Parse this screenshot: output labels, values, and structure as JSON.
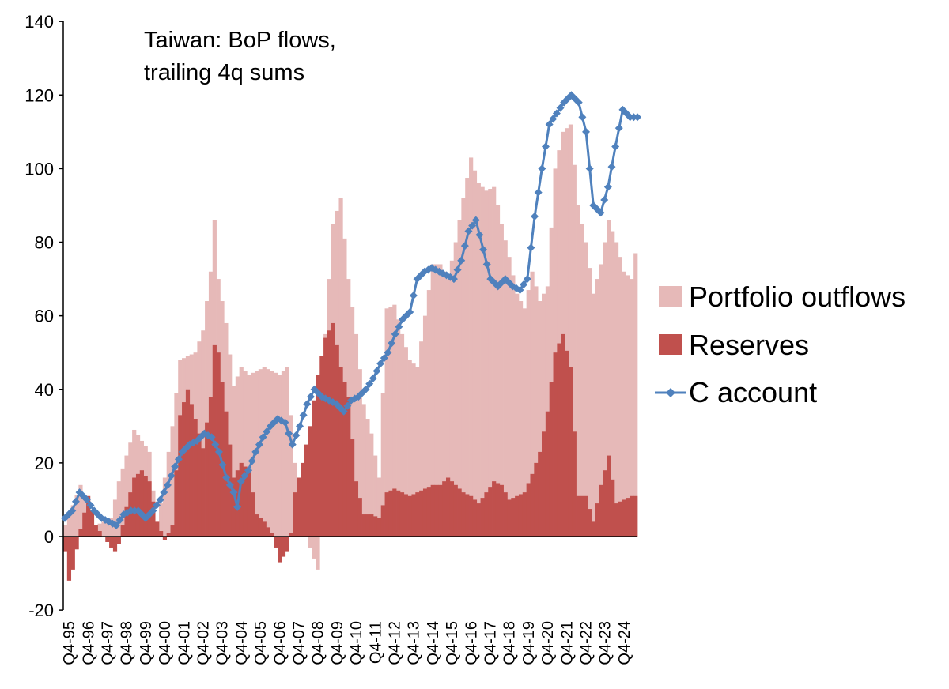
{
  "chart_data": {
    "type": "bar",
    "title": "Taiwan: BoP flows,",
    "subtitle": "trailing 4q sums",
    "xlabel": "",
    "ylabel": "",
    "ylim": [
      -20,
      140
    ],
    "yticks": [
      -20,
      0,
      20,
      40,
      60,
      80,
      100,
      120,
      140
    ],
    "grid": false,
    "legend_position": "right",
    "colors": {
      "portfolio": "#e6b9b8",
      "reserves": "#c0504d",
      "current_account": "#4f81bd",
      "axis": "#000000"
    },
    "x_labels": [
      "Q4-95",
      "Q4-96",
      "Q4-97",
      "Q4-98",
      "Q4-99",
      "Q4-00",
      "Q4-01",
      "Q4-02",
      "Q4-03",
      "Q4-04",
      "Q4-05",
      "Q4-06",
      "Q4-07",
      "Q4-08",
      "Q4-09",
      "Q4-10",
      "Q4-11",
      "Q4-12",
      "Q4-13",
      "Q4-14",
      "Q4-15",
      "Q4-16",
      "Q4-17",
      "Q4-18",
      "Q4-19",
      "Q4-20",
      "Q4-21",
      "Q4-22",
      "Q4-23",
      "Q4-24"
    ],
    "series": [
      {
        "name": "Portfolio outflows",
        "kind": "bar",
        "anchors": [
          [
            0,
            3
          ],
          [
            4,
            14
          ],
          [
            8,
            3
          ],
          [
            12,
            5
          ],
          [
            14,
            15
          ],
          [
            16,
            22
          ],
          [
            18,
            29
          ],
          [
            22,
            23
          ],
          [
            24,
            2
          ],
          [
            28,
            30
          ],
          [
            30,
            48
          ],
          [
            34,
            50
          ],
          [
            36,
            56
          ],
          [
            38,
            72
          ],
          [
            39,
            86
          ],
          [
            40,
            70
          ],
          [
            42,
            58
          ],
          [
            44,
            41
          ],
          [
            46,
            46
          ],
          [
            48,
            44
          ],
          [
            52,
            46
          ],
          [
            56,
            44
          ],
          [
            58,
            46
          ],
          [
            60,
            20
          ],
          [
            61,
            10
          ],
          [
            62,
            8
          ],
          [
            64,
            -3
          ],
          [
            66,
            -9
          ],
          [
            68,
            55
          ],
          [
            70,
            85
          ],
          [
            72,
            92
          ],
          [
            74,
            70
          ],
          [
            76,
            55
          ],
          [
            78,
            36
          ],
          [
            80,
            28
          ],
          [
            82,
            16
          ],
          [
            84,
            62
          ],
          [
            86,
            63
          ],
          [
            88,
            55
          ],
          [
            90,
            48
          ],
          [
            92,
            46
          ],
          [
            94,
            60
          ],
          [
            96,
            74
          ],
          [
            98,
            74
          ],
          [
            100,
            70
          ],
          [
            102,
            80
          ],
          [
            104,
            92
          ],
          [
            106,
            103
          ],
          [
            108,
            96
          ],
          [
            110,
            94
          ],
          [
            112,
            95
          ],
          [
            114,
            85
          ],
          [
            116,
            76
          ],
          [
            118,
            66
          ],
          [
            120,
            62
          ],
          [
            122,
            72
          ],
          [
            124,
            64
          ],
          [
            126,
            68
          ],
          [
            128,
            100
          ],
          [
            130,
            110
          ],
          [
            132,
            112
          ],
          [
            134,
            90
          ],
          [
            136,
            80
          ],
          [
            138,
            66
          ],
          [
            140,
            74
          ],
          [
            142,
            86
          ],
          [
            144,
            80
          ],
          [
            146,
            72
          ],
          [
            148,
            70
          ],
          [
            149,
            77
          ]
        ]
      },
      {
        "name": "Reserves",
        "kind": "bar",
        "anchors": [
          [
            0,
            -4
          ],
          [
            1,
            -12
          ],
          [
            2,
            -9
          ],
          [
            4,
            2
          ],
          [
            6,
            11
          ],
          [
            8,
            3
          ],
          [
            10,
            0
          ],
          [
            12,
            -3
          ],
          [
            13,
            -4
          ],
          [
            14,
            -2
          ],
          [
            16,
            8
          ],
          [
            18,
            16
          ],
          [
            20,
            18
          ],
          [
            22,
            15
          ],
          [
            24,
            4
          ],
          [
            26,
            -1
          ],
          [
            28,
            3
          ],
          [
            30,
            33
          ],
          [
            32,
            40
          ],
          [
            34,
            32
          ],
          [
            36,
            24
          ],
          [
            38,
            38
          ],
          [
            39,
            52
          ],
          [
            40,
            50
          ],
          [
            42,
            34
          ],
          [
            44,
            16
          ],
          [
            46,
            20
          ],
          [
            48,
            18
          ],
          [
            50,
            6
          ],
          [
            52,
            4
          ],
          [
            54,
            1
          ],
          [
            56,
            -7
          ],
          [
            58,
            -4
          ],
          [
            59,
            1
          ],
          [
            60,
            12
          ],
          [
            62,
            20
          ],
          [
            64,
            30
          ],
          [
            66,
            44
          ],
          [
            68,
            54
          ],
          [
            70,
            58
          ],
          [
            72,
            46
          ],
          [
            74,
            38
          ],
          [
            76,
            15
          ],
          [
            78,
            6
          ],
          [
            80,
            6
          ],
          [
            82,
            5
          ],
          [
            84,
            12
          ],
          [
            86,
            13
          ],
          [
            88,
            12
          ],
          [
            90,
            11
          ],
          [
            92,
            12
          ],
          [
            94,
            13
          ],
          [
            96,
            14
          ],
          [
            98,
            14
          ],
          [
            100,
            16
          ],
          [
            102,
            14
          ],
          [
            104,
            12
          ],
          [
            106,
            11
          ],
          [
            108,
            9
          ],
          [
            110,
            12
          ],
          [
            112,
            15
          ],
          [
            114,
            14
          ],
          [
            116,
            10
          ],
          [
            118,
            11
          ],
          [
            120,
            12
          ],
          [
            122,
            17
          ],
          [
            124,
            23
          ],
          [
            126,
            34
          ],
          [
            128,
            50
          ],
          [
            130,
            55
          ],
          [
            132,
            46
          ],
          [
            134,
            11
          ],
          [
            136,
            11
          ],
          [
            138,
            4
          ],
          [
            140,
            14
          ],
          [
            142,
            22
          ],
          [
            144,
            9
          ],
          [
            146,
            10
          ],
          [
            148,
            11
          ],
          [
            149,
            11
          ]
        ]
      },
      {
        "name": "C account",
        "kind": "line",
        "anchors": [
          [
            0,
            5
          ],
          [
            2,
            7
          ],
          [
            4,
            12
          ],
          [
            6,
            10
          ],
          [
            8,
            7
          ],
          [
            10,
            5
          ],
          [
            12,
            4
          ],
          [
            14,
            3
          ],
          [
            16,
            6
          ],
          [
            18,
            7
          ],
          [
            20,
            7
          ],
          [
            22,
            5
          ],
          [
            24,
            7
          ],
          [
            26,
            10
          ],
          [
            28,
            14
          ],
          [
            30,
            19
          ],
          [
            32,
            23
          ],
          [
            34,
            25
          ],
          [
            36,
            26
          ],
          [
            38,
            28
          ],
          [
            40,
            27
          ],
          [
            42,
            23
          ],
          [
            44,
            16
          ],
          [
            46,
            12
          ],
          [
            47,
            8
          ],
          [
            48,
            15
          ],
          [
            50,
            18
          ],
          [
            52,
            23
          ],
          [
            54,
            27
          ],
          [
            56,
            30
          ],
          [
            58,
            32
          ],
          [
            60,
            31
          ],
          [
            62,
            25
          ],
          [
            64,
            30
          ],
          [
            66,
            36
          ],
          [
            68,
            40
          ],
          [
            70,
            38
          ],
          [
            72,
            37
          ],
          [
            74,
            36
          ],
          [
            76,
            34
          ],
          [
            78,
            37
          ],
          [
            80,
            38
          ],
          [
            82,
            40
          ],
          [
            84,
            43
          ],
          [
            86,
            47
          ],
          [
            88,
            50
          ],
          [
            90,
            55
          ],
          [
            92,
            59
          ],
          [
            94,
            61
          ],
          [
            96,
            70
          ],
          [
            98,
            72
          ],
          [
            100,
            73
          ],
          [
            102,
            72
          ],
          [
            104,
            71
          ],
          [
            106,
            70
          ],
          [
            108,
            75
          ],
          [
            110,
            83
          ],
          [
            112,
            86
          ],
          [
            114,
            78
          ],
          [
            116,
            70
          ],
          [
            118,
            68
          ],
          [
            120,
            70
          ],
          [
            122,
            68
          ],
          [
            124,
            67
          ],
          [
            126,
            70
          ],
          [
            128,
            87
          ],
          [
            130,
            100
          ],
          [
            132,
            112
          ],
          [
            134,
            115
          ],
          [
            136,
            118
          ],
          [
            138,
            120
          ],
          [
            140,
            118
          ],
          [
            142,
            110
          ],
          [
            143,
            100
          ],
          [
            144,
            90
          ],
          [
            146,
            88
          ],
          [
            148,
            95
          ],
          [
            150,
            106
          ],
          [
            152,
            116
          ],
          [
            154,
            114
          ],
          [
            156,
            114
          ]
        ]
      }
    ]
  }
}
